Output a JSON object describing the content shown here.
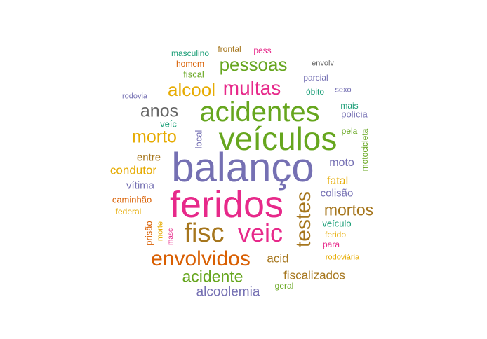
{
  "palette": {
    "green": "#66a61e",
    "purple": "#7570b3",
    "magenta": "#e7298a",
    "orange": "#d95f02",
    "gold": "#e6ab02",
    "brown": "#a6761d",
    "teal": "#1b9e77",
    "gray": "#666666"
  },
  "words": [
    {
      "text": "balanço",
      "color": "purple"
    },
    {
      "text": "feridos",
      "color": "magenta"
    },
    {
      "text": "veículos",
      "color": "green"
    },
    {
      "text": "acidentes",
      "color": "green"
    },
    {
      "text": "fisc",
      "color": "brown"
    },
    {
      "text": "veic",
      "color": "magenta"
    },
    {
      "text": "testes",
      "color": "brown"
    },
    {
      "text": "envolvidos",
      "color": "orange"
    },
    {
      "text": "multas",
      "color": "magenta"
    },
    {
      "text": "alcool",
      "color": "gold"
    },
    {
      "text": "pessoas",
      "color": "green"
    },
    {
      "text": "anos",
      "color": "gray"
    },
    {
      "text": "morto",
      "color": "gold"
    },
    {
      "text": "mortos",
      "color": "brown"
    },
    {
      "text": "acidente",
      "color": "green"
    },
    {
      "text": "alcoolemia",
      "color": "purple"
    },
    {
      "text": "fiscalizados",
      "color": "brown"
    },
    {
      "text": "condutor",
      "color": "gold"
    },
    {
      "text": "acid",
      "color": "brown"
    },
    {
      "text": "moto",
      "color": "purple"
    },
    {
      "text": "fatal",
      "color": "gold"
    },
    {
      "text": "colisão",
      "color": "purple"
    },
    {
      "text": "entre",
      "color": "brown"
    },
    {
      "text": "vítima",
      "color": "purple"
    },
    {
      "text": "caminhão",
      "color": "orange"
    },
    {
      "text": "federal",
      "color": "gold"
    },
    {
      "text": "prisão",
      "color": "orange"
    },
    {
      "text": "morte",
      "color": "gold"
    },
    {
      "text": "masc",
      "color": "magenta"
    },
    {
      "text": "veículo",
      "color": "teal"
    },
    {
      "text": "ferido",
      "color": "gold"
    },
    {
      "text": "para",
      "color": "magenta"
    },
    {
      "text": "rodoviária",
      "color": "gold"
    },
    {
      "text": "geral",
      "color": "green"
    },
    {
      "text": "veíc",
      "color": "teal"
    },
    {
      "text": "local",
      "color": "purple"
    },
    {
      "text": "motocicleta",
      "color": "green"
    },
    {
      "text": "pela",
      "color": "green"
    },
    {
      "text": "polícia",
      "color": "purple"
    },
    {
      "text": "mais",
      "color": "teal"
    },
    {
      "text": "sexo",
      "color": "purple"
    },
    {
      "text": "óbito",
      "color": "teal"
    },
    {
      "text": "parcial",
      "color": "purple"
    },
    {
      "text": "envolv",
      "color": "gray"
    },
    {
      "text": "pess",
      "color": "magenta"
    },
    {
      "text": "frontal",
      "color": "brown"
    },
    {
      "text": "masculino",
      "color": "teal"
    },
    {
      "text": "homem",
      "color": "orange"
    },
    {
      "text": "fiscal",
      "color": "green"
    },
    {
      "text": "rodovia",
      "color": "purple"
    }
  ]
}
